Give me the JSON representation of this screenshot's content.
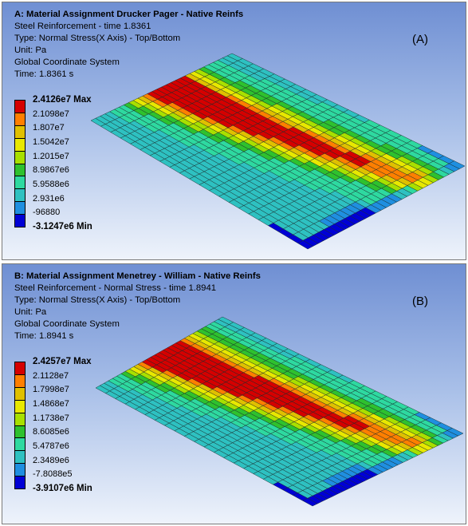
{
  "panels": [
    {
      "title": "A: Material Assignment Drucker Pager - Native Reinfs",
      "lines": [
        "Steel Reinforcement - time 1.8361",
        "Type: Normal Stress(X Axis) - Top/Bottom",
        "Unit: Pa",
        "Global Coordinate System",
        "Time: 1.8361 s"
      ],
      "label": "(A)",
      "legend": [
        "2.4126e7 Max",
        "2.1098e7",
        "1.807e7",
        "1.5042e7",
        "1.2015e7",
        "8.9867e6",
        "5.9588e6",
        "2.931e6",
        "-96880",
        "-3.1247e6 Min"
      ]
    },
    {
      "title": "B: Material Assignment Menetrey - William - Native Reinfs",
      "lines": [
        "Steel Reinforcement - Normal Stress - time 1.8941",
        "Type: Normal Stress(X Axis) - Top/Bottom",
        "Unit: Pa",
        "Global Coordinate System",
        "Time: 1.8941 s"
      ],
      "label": "(B)",
      "legend": [
        "2.4257e7 Max",
        "2.1128e7",
        "1.7998e7",
        "1.4868e7",
        "1.1738e7",
        "8.6085e6",
        "5.4787e6",
        "2.3489e6",
        "-7.8088e5",
        "-3.9107e6 Min"
      ]
    }
  ],
  "colors": {
    "legend_bands": [
      "#d50000",
      "#ff7f00",
      "#e0c000",
      "#e8e800",
      "#a8e000",
      "#2ec12e",
      "#2ed9a0",
      "#2ec1c1",
      "#1f8fe0",
      "#0000d5"
    ],
    "mesh_lines": "#1a2a2a"
  }
}
